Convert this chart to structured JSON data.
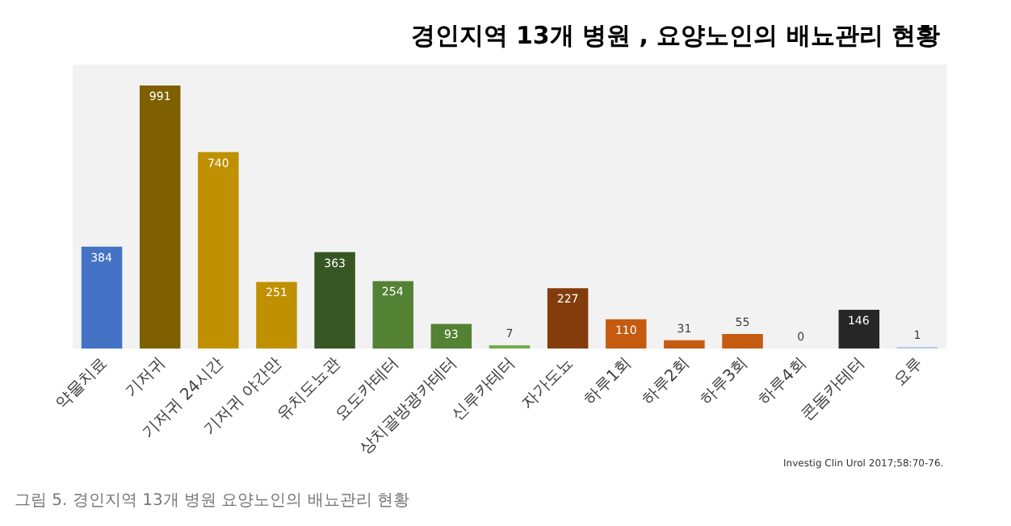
{
  "chart_data": {
    "type": "bar",
    "title": "경인지역 13개 병원 , 요양노인의 배뇨관리 현황",
    "categories": [
      "약물치료",
      "기저귀",
      "기저귀 24시간",
      "기저귀 야간만",
      "유치도뇨관",
      "요도카테터",
      "상치골방광카테터",
      "신루카테터",
      "자가도뇨",
      "하루1회",
      "하루2회",
      "하루3회",
      "하루4회",
      "콘돔카테터",
      "요루"
    ],
    "values": [
      384,
      991,
      740,
      251,
      363,
      254,
      93,
      7,
      227,
      110,
      31,
      55,
      0,
      146,
      1
    ],
    "colors": [
      "#4472c4",
      "#7f6000",
      "#bf9000",
      "#bf9000",
      "#375623",
      "#548235",
      "#548235",
      "#70ad47",
      "#843c0c",
      "#c55a11",
      "#c55a11",
      "#c55a11",
      "#d9d9d9",
      "#262626",
      "#b4c7e7"
    ],
    "data_labels": true,
    "annotations": [
      "Investig Clin Urol 2017;58:70-76.",
      "그림 5. 경인지역 13개 병원 요양노인의 배뇨관리 현황"
    ]
  }
}
